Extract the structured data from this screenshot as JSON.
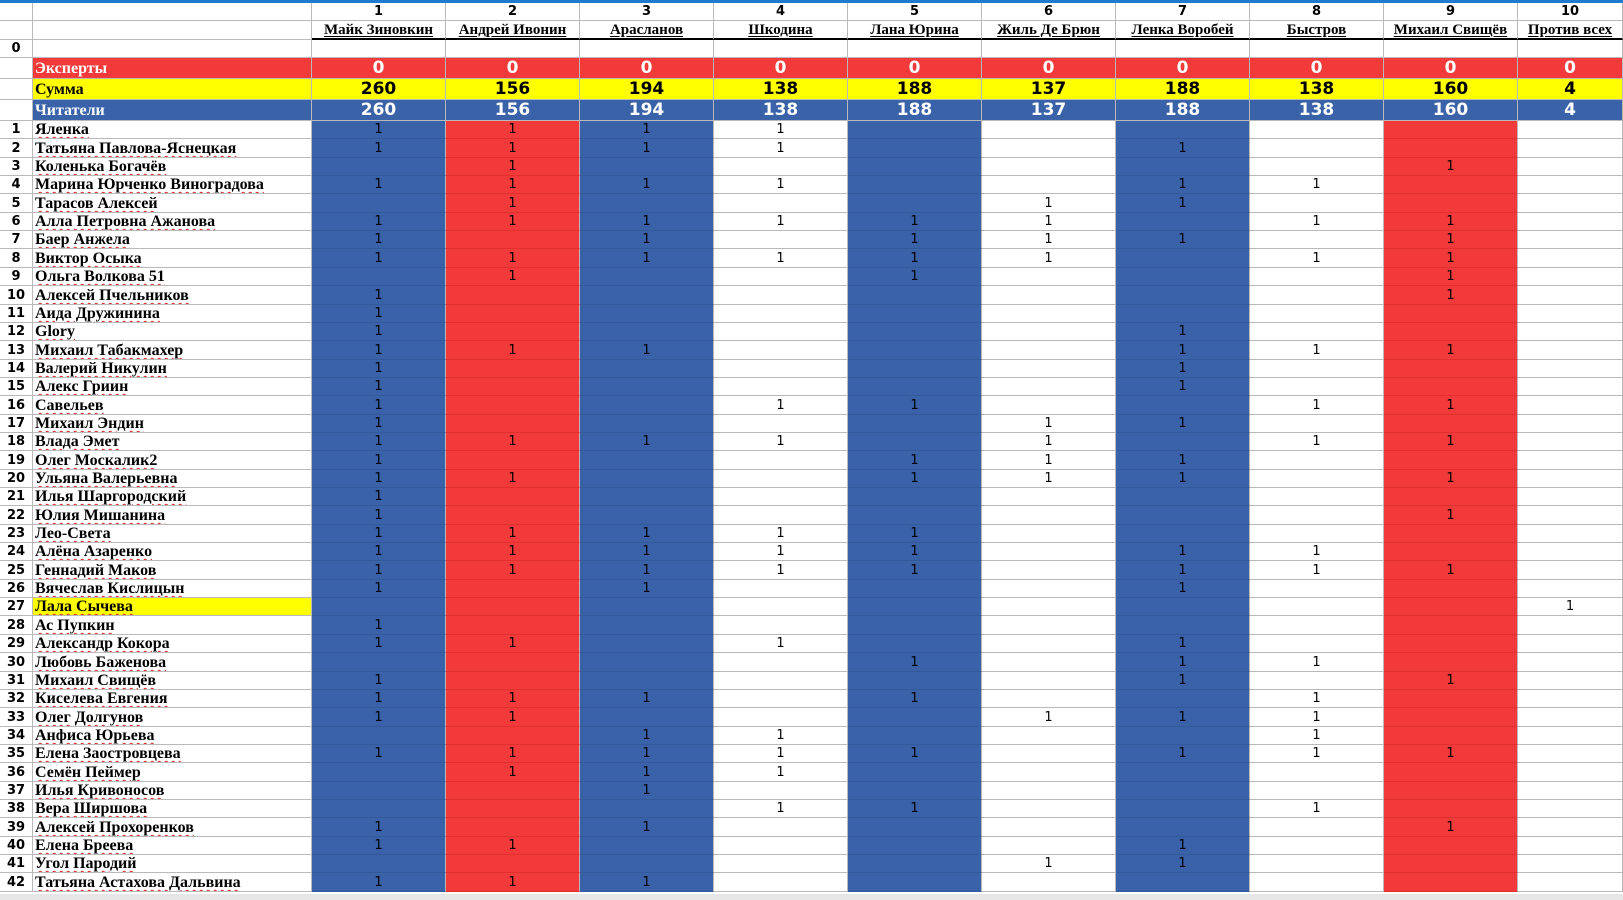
{
  "colors": {
    "blue": "#3a62a8",
    "red": "#f23a3a",
    "yellow": "#ffff00",
    "white": "#ffffff"
  },
  "column_numbers": [
    "1",
    "2",
    "3",
    "4",
    "5",
    "6",
    "7",
    "8",
    "9",
    "10"
  ],
  "candidates": [
    "Майк Зиновкин",
    "Андрей Ивонин",
    "Арасланов",
    "Шкодина",
    "Лана Юрина",
    "Жиль Де Брюн",
    "Ленка Воробей",
    "Быстров",
    "Михаил Свищёв",
    "Против всех"
  ],
  "column_fill": [
    "blue",
    "red",
    "blue",
    "white",
    "blue",
    "white",
    "blue",
    "white",
    "red",
    "white"
  ],
  "zero_row_label": "0",
  "experts": {
    "label": "Эксперты",
    "values": [
      "0",
      "0",
      "0",
      "0",
      "0",
      "0",
      "0",
      "0",
      "0",
      "0"
    ]
  },
  "sum": {
    "label": "Сумма",
    "values": [
      "260",
      "156",
      "194",
      "138",
      "188",
      "137",
      "188",
      "138",
      "160",
      "4"
    ]
  },
  "readers": {
    "label": "Читатели",
    "values": [
      "260",
      "156",
      "194",
      "138",
      "188",
      "137",
      "188",
      "138",
      "160",
      "4"
    ]
  },
  "voters": [
    {
      "n": "1",
      "name": "Яленка",
      "v": [
        1,
        1,
        1,
        1,
        0,
        0,
        0,
        0,
        0,
        0
      ]
    },
    {
      "n": "2",
      "name": "Татьяна Павлова-Яснецкая",
      "v": [
        1,
        1,
        1,
        1,
        0,
        0,
        1,
        0,
        0,
        0
      ]
    },
    {
      "n": "3",
      "name": "Коленька Богачёв",
      "v": [
        0,
        1,
        0,
        0,
        0,
        0,
        0,
        0,
        1,
        0
      ]
    },
    {
      "n": "4",
      "name": "Марина Юрченко Виноградова",
      "v": [
        1,
        1,
        1,
        1,
        0,
        0,
        1,
        1,
        0,
        0
      ]
    },
    {
      "n": "5",
      "name": "Тарасов Алексей",
      "v": [
        0,
        1,
        0,
        0,
        0,
        1,
        1,
        0,
        0,
        0
      ]
    },
    {
      "n": "6",
      "name": "Алла Петровна Ажанова",
      "v": [
        1,
        1,
        1,
        1,
        1,
        1,
        0,
        1,
        1,
        0
      ]
    },
    {
      "n": "7",
      "name": "Баер Анжела",
      "v": [
        1,
        0,
        1,
        0,
        1,
        1,
        1,
        0,
        1,
        0
      ]
    },
    {
      "n": "8",
      "name": "Виктор Осыка",
      "v": [
        1,
        1,
        1,
        1,
        1,
        1,
        0,
        1,
        1,
        0
      ]
    },
    {
      "n": "9",
      "name": "Ольга Волкова 51",
      "v": [
        0,
        1,
        0,
        0,
        1,
        0,
        0,
        0,
        1,
        0
      ]
    },
    {
      "n": "10",
      "name": "Алексей Пчельников",
      "v": [
        1,
        0,
        0,
        0,
        0,
        0,
        0,
        0,
        1,
        0
      ]
    },
    {
      "n": "11",
      "name": "Аида Дружинина",
      "v": [
        1,
        0,
        0,
        0,
        0,
        0,
        0,
        0,
        0,
        0
      ]
    },
    {
      "n": "12",
      "name": "Glory",
      "v": [
        1,
        0,
        0,
        0,
        0,
        0,
        1,
        0,
        0,
        0
      ]
    },
    {
      "n": "13",
      "name": "Михаил Табакмахер",
      "v": [
        1,
        1,
        1,
        0,
        0,
        0,
        1,
        1,
        1,
        0
      ]
    },
    {
      "n": "14",
      "name": "Валерий Никулин",
      "v": [
        1,
        0,
        0,
        0,
        0,
        0,
        1,
        0,
        0,
        0
      ]
    },
    {
      "n": "15",
      "name": "Алекс Гриин",
      "v": [
        1,
        0,
        0,
        0,
        0,
        0,
        1,
        0,
        0,
        0
      ]
    },
    {
      "n": "16",
      "name": "Савельев",
      "v": [
        1,
        0,
        0,
        1,
        1,
        0,
        0,
        1,
        1,
        0
      ]
    },
    {
      "n": "17",
      "name": "Михаил Эндин",
      "v": [
        1,
        0,
        0,
        0,
        0,
        1,
        1,
        0,
        0,
        0
      ]
    },
    {
      "n": "18",
      "name": "Влада Эмет",
      "v": [
        1,
        1,
        1,
        1,
        0,
        1,
        0,
        1,
        1,
        0
      ]
    },
    {
      "n": "19",
      "name": "Олег Москалик2",
      "v": [
        1,
        0,
        0,
        0,
        1,
        1,
        1,
        0,
        0,
        0
      ]
    },
    {
      "n": "20",
      "name": "Ульяна Валерьевна",
      "v": [
        1,
        1,
        0,
        0,
        1,
        1,
        1,
        0,
        1,
        0
      ]
    },
    {
      "n": "21",
      "name": "Илья Шаргородский",
      "v": [
        1,
        0,
        0,
        0,
        0,
        0,
        0,
        0,
        0,
        0
      ]
    },
    {
      "n": "22",
      "name": "Юлия Мишанина",
      "v": [
        1,
        0,
        0,
        0,
        0,
        0,
        0,
        0,
        1,
        0
      ]
    },
    {
      "n": "23",
      "name": "Лео-Света",
      "v": [
        1,
        1,
        1,
        1,
        1,
        0,
        0,
        0,
        0,
        0
      ]
    },
    {
      "n": "24",
      "name": "Алёна Азаренко",
      "v": [
        1,
        1,
        1,
        1,
        1,
        0,
        1,
        1,
        0,
        0
      ]
    },
    {
      "n": "25",
      "name": "Геннадий Маков",
      "v": [
        1,
        1,
        1,
        1,
        1,
        0,
        1,
        1,
        1,
        0
      ]
    },
    {
      "n": "26",
      "name": "Вячеслав Кислицын",
      "v": [
        1,
        0,
        1,
        0,
        0,
        0,
        1,
        0,
        0,
        0
      ]
    },
    {
      "n": "27",
      "name": "Лала Сычева",
      "v": [
        0,
        0,
        0,
        0,
        0,
        0,
        0,
        0,
        0,
        1
      ],
      "highlight": true
    },
    {
      "n": "28",
      "name": "Ас Пупкин",
      "v": [
        1,
        0,
        0,
        0,
        0,
        0,
        0,
        0,
        0,
        0
      ]
    },
    {
      "n": "29",
      "name": "Александр Кокора",
      "v": [
        1,
        1,
        0,
        1,
        0,
        0,
        1,
        0,
        0,
        0
      ]
    },
    {
      "n": "30",
      "name": "Любовь Баженова",
      "v": [
        0,
        0,
        0,
        0,
        1,
        0,
        1,
        1,
        0,
        0
      ]
    },
    {
      "n": "31",
      "name": "Михаил Свищёв",
      "v": [
        1,
        0,
        0,
        0,
        0,
        0,
        1,
        0,
        1,
        0
      ]
    },
    {
      "n": "32",
      "name": "Киселева Евгения",
      "v": [
        1,
        1,
        1,
        0,
        1,
        0,
        0,
        1,
        0,
        0
      ]
    },
    {
      "n": "33",
      "name": "Олег Долгунов",
      "v": [
        1,
        1,
        0,
        0,
        0,
        1,
        1,
        1,
        0,
        0
      ]
    },
    {
      "n": "34",
      "name": "Анфиса Юрьева",
      "v": [
        0,
        0,
        1,
        1,
        0,
        0,
        0,
        1,
        0,
        0
      ]
    },
    {
      "n": "35",
      "name": "Елена Заостровцева",
      "v": [
        1,
        1,
        1,
        1,
        1,
        0,
        1,
        1,
        1,
        0
      ]
    },
    {
      "n": "36",
      "name": "Семён Пеймер",
      "v": [
        0,
        1,
        1,
        1,
        0,
        0,
        0,
        0,
        0,
        0
      ]
    },
    {
      "n": "37",
      "name": "Илья Кривоносов",
      "v": [
        0,
        0,
        1,
        0,
        0,
        0,
        0,
        0,
        0,
        0
      ]
    },
    {
      "n": "38",
      "name": "Вера Ширшова",
      "v": [
        0,
        0,
        0,
        1,
        1,
        0,
        0,
        1,
        0,
        0
      ]
    },
    {
      "n": "39",
      "name": "Алексей Прохоренков",
      "v": [
        1,
        0,
        1,
        0,
        0,
        0,
        0,
        0,
        1,
        0
      ]
    },
    {
      "n": "40",
      "name": "Елена Бреева",
      "v": [
        1,
        1,
        0,
        0,
        0,
        0,
        1,
        0,
        0,
        0
      ]
    },
    {
      "n": "41",
      "name": "Угол Пародий",
      "v": [
        0,
        0,
        0,
        0,
        0,
        1,
        1,
        0,
        0,
        0
      ]
    },
    {
      "n": "42",
      "name": "Татьяна Астахова Дальвина",
      "v": [
        1,
        1,
        1,
        0,
        0,
        0,
        0,
        0,
        0,
        0
      ]
    }
  ]
}
